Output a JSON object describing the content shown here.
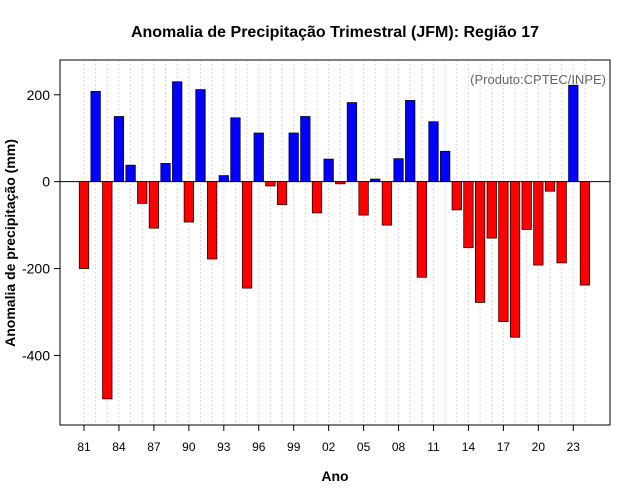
{
  "chart_data": {
    "type": "bar",
    "title": "Anomalia de Precipitação Trimestral (JFM): Região 17",
    "xlabel": "Ano",
    "ylabel": "Anomalia de precipitação (mm)",
    "source_note": "(Produto:CPTEC/INPE)",
    "ylim": [
      -560,
      280
    ],
    "yticks": [
      -400,
      -200,
      0,
      200
    ],
    "xtick_labels": [
      "81",
      "84",
      "87",
      "90",
      "93",
      "96",
      "99",
      "02",
      "05",
      "08",
      "11",
      "14",
      "17",
      "20",
      "23"
    ],
    "xtick_years": [
      1981,
      1984,
      1987,
      1990,
      1993,
      1996,
      1999,
      2002,
      2005,
      2008,
      2011,
      2014,
      2017,
      2020,
      2023
    ],
    "grid": true,
    "colors": {
      "positive": "#0000ff",
      "negative": "#ff0000",
      "grid": "#d9d9d9"
    },
    "categories": [
      1981,
      1982,
      1983,
      1984,
      1985,
      1986,
      1987,
      1988,
      1989,
      1990,
      1991,
      1992,
      1993,
      1994,
      1995,
      1996,
      1997,
      1998,
      1999,
      2000,
      2001,
      2002,
      2003,
      2004,
      2005,
      2006,
      2007,
      2008,
      2009,
      2010,
      2011,
      2012,
      2013,
      2014,
      2015,
      2016,
      2017,
      2018,
      2019,
      2020,
      2021,
      2022,
      2023,
      2024
    ],
    "values": [
      -200,
      208,
      -500,
      150,
      38,
      -50,
      -107,
      42,
      230,
      -93,
      212,
      -178,
      14,
      147,
      -245,
      112,
      -10,
      -53,
      112,
      150,
      -72,
      52,
      -5,
      182,
      -77,
      6,
      -100,
      53,
      187,
      -220,
      138,
      70,
      -65,
      -152,
      -278,
      -130,
      -322,
      -358,
      -110,
      -192,
      -22,
      -187,
      222,
      -238
    ]
  }
}
